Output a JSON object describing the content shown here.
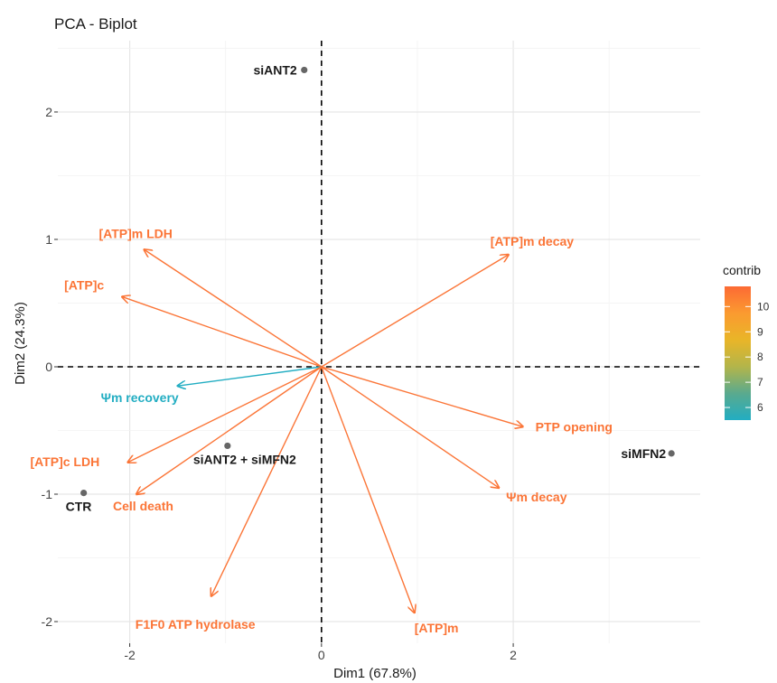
{
  "chart_data": {
    "type": "scatter",
    "subtype": "pca-biplot",
    "title": "PCA - Biplot",
    "xlabel": "Dim1 (67.8%)",
    "ylabel": "Dim2 (24.3%)",
    "xlim": [
      -2.75,
      3.95
    ],
    "ylim": [
      -2.17,
      2.56
    ],
    "x_ticks": [
      -2,
      0,
      2
    ],
    "y_ticks": [
      -2,
      -1,
      0,
      1,
      2
    ],
    "grid": true,
    "zero_lines": "dashed",
    "variables": [
      {
        "name": "[ATP]m LDH",
        "x": -1.85,
        "y": 0.92,
        "contrib": 10.3,
        "color": "#fb7537"
      },
      {
        "name": "[ATP]c",
        "x": -2.08,
        "y": 0.55,
        "contrib": 10.4,
        "color": "#fb7537"
      },
      {
        "name": "[ATP]m decay",
        "x": 1.95,
        "y": 0.88,
        "contrib": 10.2,
        "color": "#fb7537"
      },
      {
        "name": "Ψm recovery",
        "x": -1.5,
        "y": -0.15,
        "contrib": 5.6,
        "color": "#22adc2"
      },
      {
        "name": "PTP opening",
        "x": 2.1,
        "y": -0.47,
        "contrib": 10.1,
        "color": "#fb7537"
      },
      {
        "name": "[ATP]c LDH",
        "x": -2.02,
        "y": -0.75,
        "contrib": 10.3,
        "color": "#fb7537"
      },
      {
        "name": "Cell death",
        "x": -1.93,
        "y": -1.0,
        "contrib": 10.3,
        "color": "#fb7537"
      },
      {
        "name": "Ψm decay",
        "x": 1.85,
        "y": -0.95,
        "contrib": 10.1,
        "color": "#fb7537"
      },
      {
        "name": "F1F0 ATP hydrolase",
        "x": -1.15,
        "y": -1.8,
        "contrib": 10.3,
        "color": "#fb7537"
      },
      {
        "name": "[ATP]m",
        "x": 0.97,
        "y": -1.93,
        "contrib": 10.3,
        "color": "#fb7537"
      }
    ],
    "individuals": [
      {
        "name": "siANT2",
        "x": -0.18,
        "y": 2.33
      },
      {
        "name": "siANT2 + siMFN2",
        "x": -0.98,
        "y": -0.62
      },
      {
        "name": "siMFN2",
        "x": 3.65,
        "y": -0.68
      },
      {
        "name": "CTR",
        "x": -2.48,
        "y": -0.99
      }
    ],
    "legend": {
      "title": "contrib",
      "position": "right",
      "ticks": [
        6,
        7,
        8,
        9,
        10
      ],
      "range": [
        5.5,
        10.8
      ],
      "colors": [
        "#22adc2",
        "#5aaa8e",
        "#b3b54a",
        "#e9b528",
        "#fb9a30",
        "#fc6a34"
      ]
    }
  }
}
